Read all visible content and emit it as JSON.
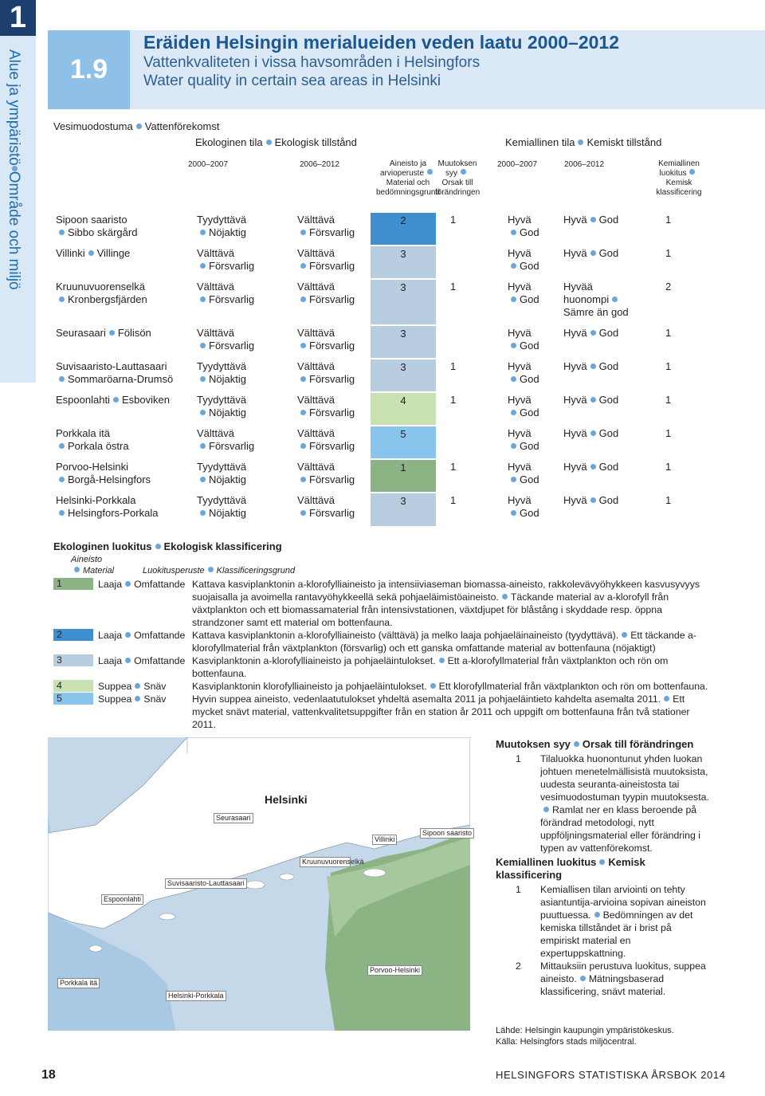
{
  "sidebar": {
    "chapter": "1",
    "section": [
      "Alue ja ympäristö",
      "Område och miljö"
    ]
  },
  "header": {
    "number": "1.9",
    "title": "Eräiden Helsingin merialueiden veden laatu 2000–2012",
    "subtitle_sv": "Vattenkvaliteten i vissa havsområden i Helsingfors",
    "subtitle_en": "Water quality in certain sea areas in Helsinki"
  },
  "table": {
    "columns": {
      "water_body": [
        "Vesimuodostuma",
        "Vattenförekomst"
      ],
      "ecological": [
        "Ekologinen tila",
        "Ekologisk tillstånd"
      ],
      "chemical": [
        "Kemiallinen tila",
        "Kemiskt tillstånd"
      ],
      "period1": "2000–2007",
      "period2": "2006–2012",
      "material": [
        "Aineisto ja arvioperuste",
        "Material och bedömningsgrund"
      ],
      "change": [
        "Muutoksen syy",
        "Orsak till förändringen"
      ],
      "classification": [
        "Kemiallinen luokitus",
        "Kemisk klassificering"
      ]
    },
    "rows": [
      {
        "name": [
          "Sipoon saaristo",
          "Sibbo skärgård"
        ],
        "eco_2000_2007": [
          "Tyydyttävä",
          "Nöjaktig"
        ],
        "eco_2006_2012": [
          "Välttävä",
          "Försvarlig"
        ],
        "material": 2,
        "change": 1,
        "chem_2000_2007": [
          "Hyvä",
          "God"
        ],
        "chem_2006_2012": [
          "Hyvä",
          "God"
        ],
        "chem_class": 1
      },
      {
        "name": [
          "Villinki",
          "Villinge"
        ],
        "eco_2000_2007": [
          "Välttävä",
          "Försvarlig"
        ],
        "eco_2006_2012": [
          "Välttävä",
          "Försvarlig"
        ],
        "material": 3,
        "chem_2000_2007": [
          "Hyvä",
          "God"
        ],
        "chem_2006_2012": [
          "Hyvä",
          "God"
        ],
        "chem_class": 1
      },
      {
        "name": [
          "Kruunuvuorenselkä",
          "Kronbergsfjärden"
        ],
        "eco_2000_2007": [
          "Välttävä",
          "Försvarlig"
        ],
        "eco_2006_2012": [
          "Välttävä",
          "Försvarlig"
        ],
        "material": 3,
        "change": 1,
        "chem_2000_2007": [
          "Hyvä",
          "God"
        ],
        "chem_2006_2012": [
          "Hyvää huonompi",
          "Sämre än god"
        ],
        "chem_class": 2
      },
      {
        "name": [
          "Seurasaari",
          "Fölisön"
        ],
        "eco_2000_2007": [
          "Välttävä",
          "Försvarlig"
        ],
        "eco_2006_2012": [
          "Välttävä",
          "Försvarlig"
        ],
        "material": 3,
        "chem_2000_2007": [
          "Hyvä",
          "God"
        ],
        "chem_2006_2012": [
          "Hyvä",
          "God"
        ],
        "chem_class": 1
      },
      {
        "name": [
          "Suvisaaristo-Lauttasaari",
          "Sommaröarna-Drumsö"
        ],
        "eco_2000_2007": [
          "Tyydyttävä",
          "Nöjaktig"
        ],
        "eco_2006_2012": [
          "Välttävä",
          "Försvarlig"
        ],
        "material": 3,
        "change": 1,
        "chem_2000_2007": [
          "Hyvä",
          "God"
        ],
        "chem_2006_2012": [
          "Hyvä",
          "God"
        ],
        "chem_class": 1
      },
      {
        "name": [
          "Espoonlahti",
          "Esboviken"
        ],
        "eco_2000_2007": [
          "Tyydyttävä",
          "Nöjaktig"
        ],
        "eco_2006_2012": [
          "Välttävä",
          "Försvarlig"
        ],
        "material": 4,
        "change": 1,
        "chem_2000_2007": [
          "Hyvä",
          "God"
        ],
        "chem_2006_2012": [
          "Hyvä",
          "God"
        ],
        "chem_class": 1
      },
      {
        "name": [
          "Porkkala itä",
          "Porkala östra"
        ],
        "eco_2000_2007": [
          "Välttävä",
          "Försvarlig"
        ],
        "eco_2006_2012": [
          "Välttävä",
          "Försvarlig"
        ],
        "material": 5,
        "chem_2000_2007": [
          "Hyvä",
          "God"
        ],
        "chem_2006_2012": [
          "Hyvä",
          "God"
        ],
        "chem_class": 1
      },
      {
        "name": [
          "Porvoo-Helsinki",
          "Borgå-Helsingfors"
        ],
        "eco_2000_2007": [
          "Tyydyttävä",
          "Nöjaktig"
        ],
        "eco_2006_2012": [
          "Välttävä",
          "Försvarlig"
        ],
        "material": 1,
        "change": 1,
        "chem_2000_2007": [
          "Hyvä",
          "God"
        ],
        "chem_2006_2012": [
          "Hyvä",
          "God"
        ],
        "chem_class": 1
      },
      {
        "name": [
          "Helsinki-Porkkala",
          "Helsingfors-Porkala"
        ],
        "eco_2000_2007": [
          "Tyydyttävä",
          "Nöjaktig"
        ],
        "eco_2006_2012": [
          "Välttävä",
          "Försvarlig"
        ],
        "material": 3,
        "change": 1,
        "chem_2000_2007": [
          "Hyvä",
          "God"
        ],
        "chem_2006_2012": [
          "Hyvä",
          "God"
        ],
        "chem_class": 1
      }
    ]
  },
  "legend": {
    "title": [
      "Ekologinen luokitus",
      "Ekologisk klassificering"
    ],
    "material": [
      "Aineisto",
      "Material"
    ],
    "basis": [
      "Luokitusperuste",
      "Klassificeringsgrund"
    ],
    "classes": [
      {
        "code": 1,
        "color": "#8cb383",
        "extent": [
          "Laaja",
          "Omfattande"
        ],
        "text": [
          "Kattava kasviplanktonin a-klorofylliaineisto ja intensiiviaseman biomassa-aineisto, rakkolevävyöhykkeen kasvusyvyys suojaisalla ja avoimella rantavyöhykkeellä sekä pohjaeläimistöaineisto.",
          "Täckande material av a-klorofyll från växtplankton och ett biomassamaterial från intensivstationen, växtdjupet för blåstång i skyddade resp. öppna strandzoner samt ett material om bottenfauna."
        ]
      },
      {
        "code": 2,
        "color": "#3f8fd0",
        "extent": [
          "Laaja",
          "Omfattande"
        ],
        "text": [
          "Kattava kasviplanktonin a-klorofylliaineisto (välttävä) ja melko laaja pohjaeläinaineisto (tyydyttävä).",
          "Ett täckande a-klorofyllmaterial från växtplankton (försvarlig) och ett ganska omfattande material av bottenfauna (nöjaktigt)"
        ]
      },
      {
        "code": 3,
        "color": "#b8cde0",
        "extent": [
          "Laaja",
          "Omfattande"
        ],
        "text": [
          "Kasviplanktonin a-klorofylliaineisto ja pohjaeläintulokset.",
          "Ett a-klorofyllmaterial från växtplankton och rön om bottenfauna."
        ]
      },
      {
        "code": 4,
        "color": "#c9e0b1",
        "extent": [
          "Suppea",
          "Snäv"
        ],
        "text": [
          "Kasviplanktonin klorofylliaineisto ja pohjaeläintulokset.",
          "Ett klorofyllmaterial från växtplankton och rön om bottenfauna."
        ]
      },
      {
        "code": 5,
        "color": "#88c4ec",
        "extent": [
          "Suppea",
          "Snäv"
        ],
        "text": [
          "Hyvin suppea aineisto, vedenlaatutulokset yhdeltä asemalta 2011 ja pohjaeläintieto kahdelta asemalta 2011.",
          "Ett mycket snävt material, vattenkvalitetsuppgifter från en station år 2011 och uppgift om bottenfauna från två stationer 2011."
        ]
      }
    ]
  },
  "map": {
    "labels": [
      "Helsinki",
      "Seurasaari",
      "Villinki",
      "Sipoon saaristo",
      "Kruunuvuorenselkä",
      "Suvisaaristo-Lauttasaari",
      "Espoonlahti",
      "Porkkala itä",
      "Helsinki-Porkkala",
      "Porvoo-Helsinki"
    ]
  },
  "notes": [
    {
      "title": [
        "Muutoksen syy",
        "Orsak till förändringen"
      ],
      "items": [
        {
          "code": 1,
          "text": [
            "Tilaluokka huonontunut yhden luokan johtuen menetelmällisistä muutoksista, uudesta seuranta-aineistosta tai vesimuodostuman tyypin muutoksesta.",
            "Ramlat ner en klass beroende på förändrad metodologi, nytt uppföljningsmaterial eller förändring i typen av vattenförekomst."
          ]
        }
      ]
    },
    {
      "title": [
        "Kemiallinen luokitus",
        "Kemisk klassificering"
      ],
      "items": [
        {
          "code": 1,
          "text": [
            "Kemiallisen tilan arviointi on tehty asiantuntija-arvioina sopivan aineiston puuttuessa.",
            "Bedömningen av det kemiska tillståndet är i brist på empiriskt material en expertuppskattning."
          ]
        },
        {
          "code": 2,
          "text": [
            "Mittauksiin perustuva luokitus, suppea aineisto.",
            "Mätningsbaserad klassificering, snävt material."
          ]
        }
      ]
    }
  ],
  "source": [
    "Lähde: Helsingin kaupungin ympäristökeskus.",
    "Källa: Helsingfors stads miljöcentral."
  ],
  "footer": {
    "page": "18",
    "publication": "HELSINGFORS STATISTISKA ÅRSBOK 2014"
  }
}
